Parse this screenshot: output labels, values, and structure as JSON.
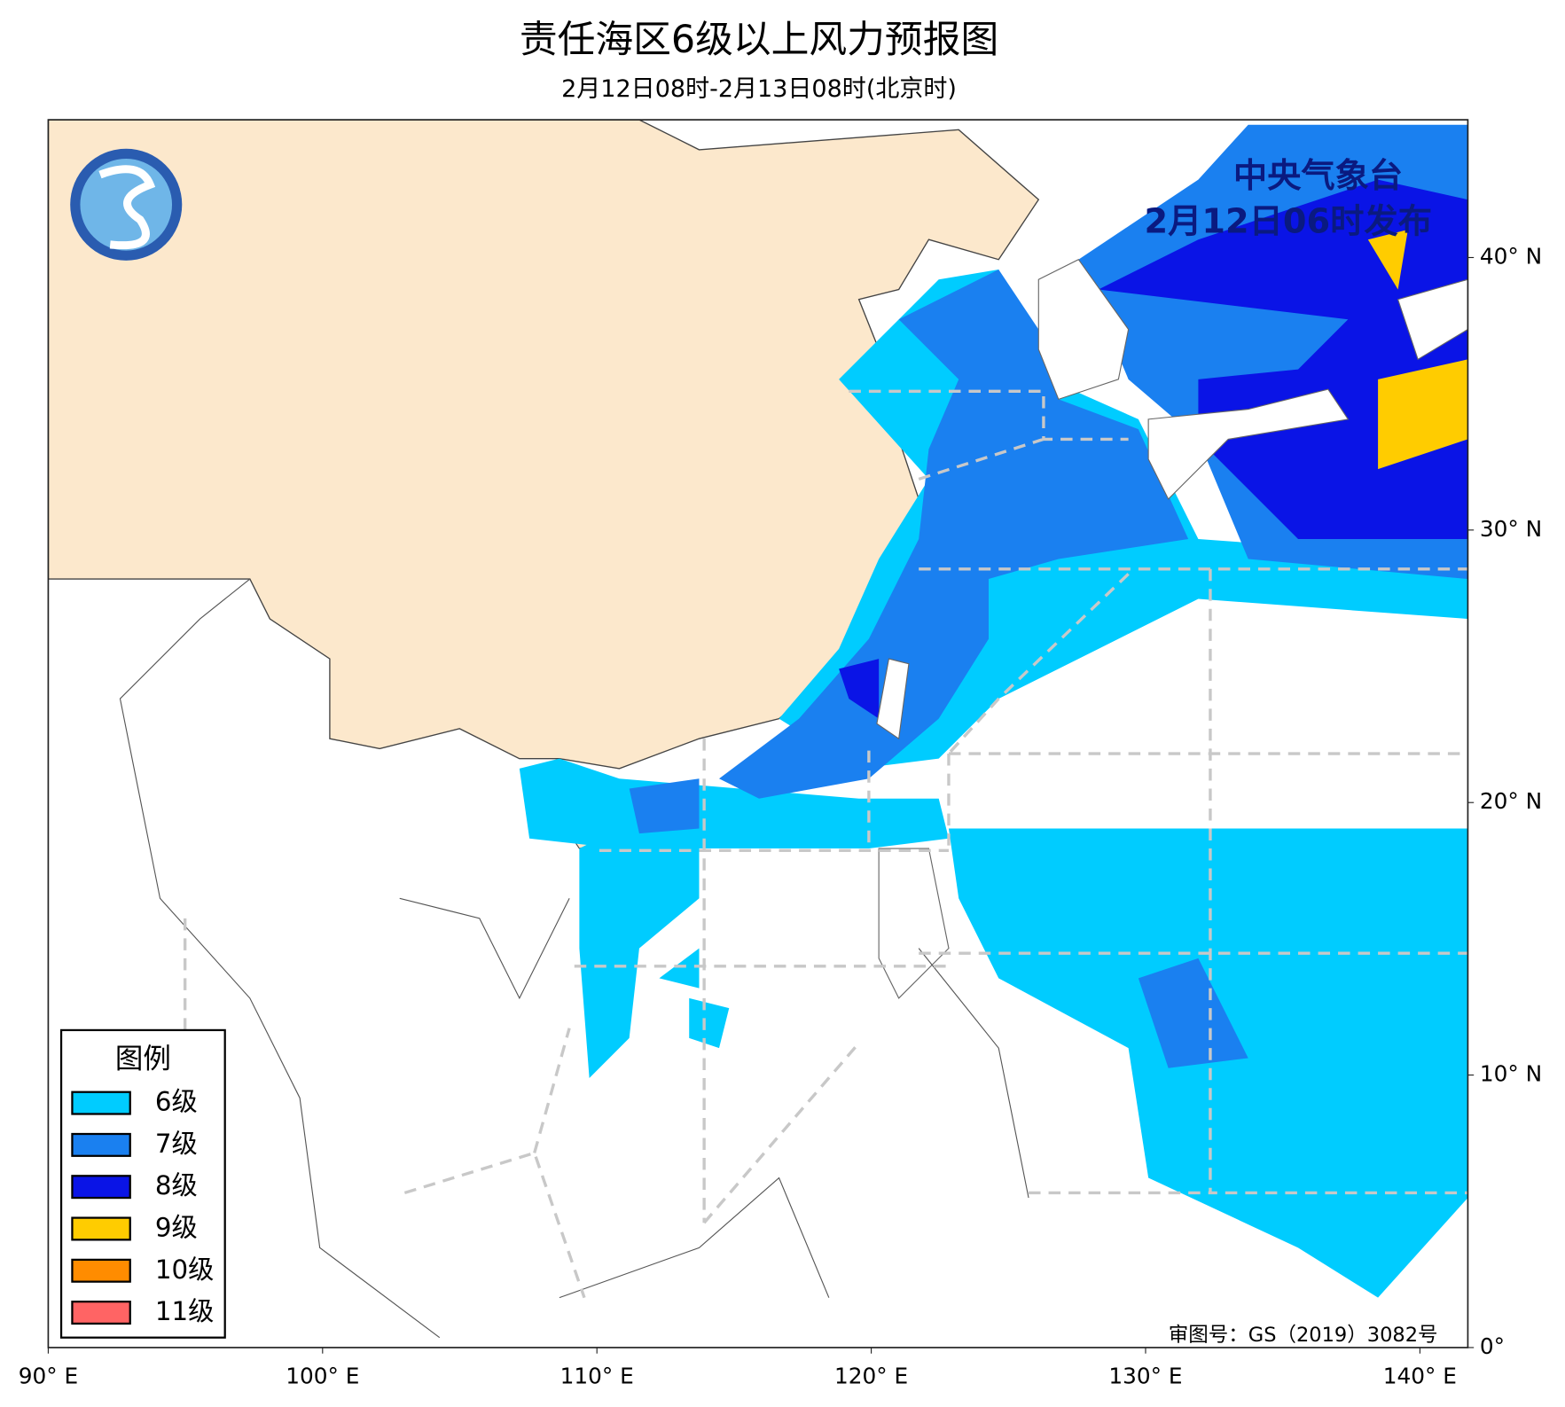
{
  "title": "责任海区6级以上风力预报图",
  "subtitle": "2月12日08时-2月13日08时(北京时)",
  "issuer": {
    "name": "中央气象台",
    "time": "2月12日06时发布"
  },
  "legend": {
    "title": "图例",
    "items": [
      {
        "label": "6级",
        "color": "#00ccff"
      },
      {
        "label": "7级",
        "color": "#1a80f0"
      },
      {
        "label": "8级",
        "color": "#0a14e6"
      },
      {
        "label": "9级",
        "color": "#ffcc00"
      },
      {
        "label": "10级",
        "color": "#ff8c00"
      },
      {
        "label": "11级",
        "color": "#ff6464"
      }
    ]
  },
  "lon_ticks": [
    {
      "value": 90,
      "label": "90° E"
    },
    {
      "value": 100,
      "label": "100° E"
    },
    {
      "value": 110,
      "label": "110° E"
    },
    {
      "value": 120,
      "label": "120° E"
    },
    {
      "value": 130,
      "label": "130° E"
    },
    {
      "value": 140,
      "label": "140° E"
    }
  ],
  "lat_ticks": [
    {
      "value": 0,
      "label": "0°"
    },
    {
      "value": 10,
      "label": "10° N"
    },
    {
      "value": 20,
      "label": "20° N"
    },
    {
      "value": 30,
      "label": "30° N"
    },
    {
      "value": 40,
      "label": "40° N"
    }
  ],
  "review_number": "审图号：GS（2019）3082号"
}
